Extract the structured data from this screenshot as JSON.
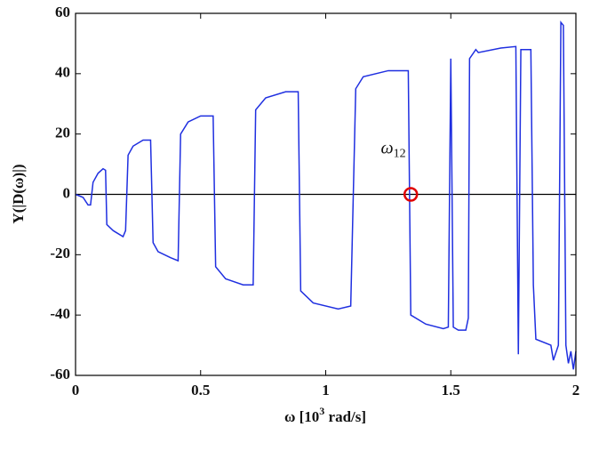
{
  "chart_data": {
    "type": "line",
    "x_label_parts": [
      "ω [10",
      "3",
      " rad/s]"
    ],
    "y_label": "Y(|D(ω)|)",
    "annotation_parts": [
      "ω",
      "12"
    ],
    "xlim": [
      0,
      2
    ],
    "ylim": [
      -60,
      60
    ],
    "xticks": [
      0,
      0.5,
      1,
      1.5,
      2
    ],
    "yticks": [
      -60,
      -40,
      -20,
      0,
      20,
      40,
      60
    ],
    "hline": 0,
    "marker": {
      "x": 1.34,
      "y": 0,
      "color": "#e00000"
    },
    "series": [
      {
        "color": "#1f2fe0",
        "x": [
          0.0,
          0.03,
          0.05,
          0.06,
          0.07,
          0.09,
          0.11,
          0.12,
          0.125,
          0.15,
          0.19,
          0.2,
          0.21,
          0.23,
          0.27,
          0.3,
          0.31,
          0.33,
          0.38,
          0.41,
          0.42,
          0.45,
          0.5,
          0.55,
          0.56,
          0.6,
          0.67,
          0.71,
          0.72,
          0.76,
          0.84,
          0.89,
          0.9,
          0.95,
          1.05,
          1.1,
          1.12,
          1.15,
          1.25,
          1.33,
          1.34,
          1.4,
          1.47,
          1.49,
          1.5,
          1.51,
          1.53,
          1.56,
          1.57,
          1.575,
          1.6,
          1.61,
          1.7,
          1.76,
          1.77,
          1.78,
          1.82,
          1.83,
          1.84,
          1.9,
          1.91,
          1.93,
          1.94,
          1.95,
          1.96,
          1.97,
          1.98,
          1.99,
          2.0
        ],
        "values": [
          0,
          -1,
          -3.5,
          -3.5,
          4,
          7,
          8.5,
          8,
          -10,
          -12,
          -14,
          -12,
          13,
          16,
          18,
          18,
          -16,
          -19,
          -21,
          -22,
          20,
          24,
          26,
          26,
          -24,
          -28,
          -30,
          -30,
          28,
          32,
          34,
          34,
          -32,
          -36,
          -38,
          -37,
          35,
          39,
          41,
          41,
          -40,
          -43,
          -44.5,
          -44,
          45,
          -44,
          -45,
          -45,
          -41,
          45,
          48,
          47,
          48.5,
          49,
          -53,
          48,
          48,
          -30,
          -48,
          -50,
          -55,
          -50,
          57,
          56,
          -50,
          -56,
          -52,
          -58,
          -52
        ]
      }
    ]
  }
}
